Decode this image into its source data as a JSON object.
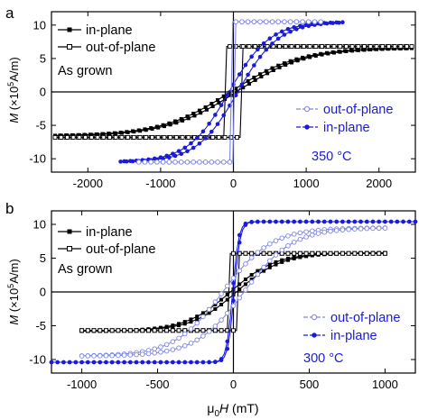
{
  "chart_data": [
    {
      "panel_label": "a",
      "type": "line",
      "xlim": [
        -2500,
        2500
      ],
      "ylim": [
        -12,
        12
      ],
      "x_ticks": [
        -2000,
        -1000,
        0,
        1000,
        2000
      ],
      "y_ticks": [
        -10,
        -5,
        0,
        5,
        10
      ],
      "ylabel_html": "M (×10<tspan baseline-shift=\"super\" font-size=\"8\">5</tspan>A/m)",
      "ylabel_parts": [
        "M",
        " (×10",
        "5",
        "A/m)"
      ],
      "grid": false,
      "legends": [
        {
          "position": "top-left",
          "entries": [
            {
              "label": "in-plane",
              "series": "As grown in-plane"
            },
            {
              "label": "out-of-plane",
              "series": "As grown out-of-plane"
            }
          ],
          "note": "As grown"
        },
        {
          "position": "bottom-right",
          "entries": [
            {
              "label": "out-of-plane",
              "series": "350 °C out-of-plane"
            },
            {
              "label": "in-plane",
              "series": "350 °C in-plane"
            }
          ],
          "note": "350 °C"
        }
      ],
      "series": [
        {
          "name": "As grown in-plane",
          "color": "#000000",
          "marker": "filled-square",
          "kind": "tanh",
          "Ms": 6.6,
          "H0": 950,
          "Hc": 40,
          "xrange": [
            -2450,
            2450
          ]
        },
        {
          "name": "As grown out-of-plane",
          "color": "#000000",
          "marker": "open-square",
          "kind": "square",
          "Ms": 6.8,
          "Hc": 110,
          "Hsw2": 60,
          "xrange": [
            -2450,
            2450
          ]
        },
        {
          "name": "350 °C in-plane",
          "color": "#1a1adb",
          "marker": "filled-circle",
          "kind": "tanh",
          "Ms": 10.5,
          "H0": 560,
          "Hc": 60,
          "xrange": [
            -1550,
            1500
          ]
        },
        {
          "name": "350 °C out-of-plane",
          "color": "#7f86e8",
          "marker": "open-circle",
          "kind": "square",
          "Ms": 10.5,
          "Hc": 30,
          "Hsw2": 15,
          "xrange": [
            -1300,
            1200
          ]
        }
      ]
    },
    {
      "panel_label": "b",
      "type": "line",
      "xlim": [
        -1200,
        1200
      ],
      "ylim": [
        -12,
        12
      ],
      "x_ticks": [
        -1000,
        -500,
        0,
        500,
        1000
      ],
      "y_ticks": [
        -10,
        -5,
        0,
        5,
        10
      ],
      "ylabel_parts": [
        "M",
        " (×10",
        "5",
        "A/m)"
      ],
      "xlabel_parts": [
        "μ",
        "0",
        "H",
        " (mT)"
      ],
      "grid": false,
      "legends": [
        {
          "position": "top-left",
          "entries": [
            {
              "label": "in-plane",
              "series": "As grown in-plane"
            },
            {
              "label": "out-of-plane",
              "series": "As grown out-of-plane"
            }
          ],
          "note": "As grown"
        },
        {
          "position": "bottom-right",
          "entries": [
            {
              "label": "out-of-plane",
              "series": "300 °C out-of-plane"
            },
            {
              "label": "in-plane",
              "series": "300 °C in-plane"
            }
          ],
          "note": "300 °C"
        }
      ],
      "series": [
        {
          "name": "As grown in-plane",
          "color": "#000000",
          "marker": "filled-square",
          "kind": "tanh",
          "Ms": 5.8,
          "H0": 300,
          "Hc": 20,
          "xrange": [
            -1000,
            1000
          ]
        },
        {
          "name": "As grown out-of-plane",
          "color": "#000000",
          "marker": "open-square",
          "kind": "square",
          "Ms": 5.7,
          "Hc": 40,
          "Hsw2": 20,
          "xrange": [
            -1000,
            1000
          ]
        },
        {
          "name": "300 °C in-plane",
          "color": "#1a1adb",
          "marker": "filled-circle",
          "kind": "tanh",
          "Ms": 10.4,
          "H0": 40,
          "Hc": 5,
          "xrange": [
            -1200,
            1200
          ]
        },
        {
          "name": "300 °C out-of-plane",
          "color": "#7f86e8",
          "marker": "open-circle",
          "kind": "tanh",
          "Ms": 9.5,
          "H0": 320,
          "Hc": 70,
          "xrange": [
            -1000,
            1000
          ]
        }
      ]
    }
  ]
}
